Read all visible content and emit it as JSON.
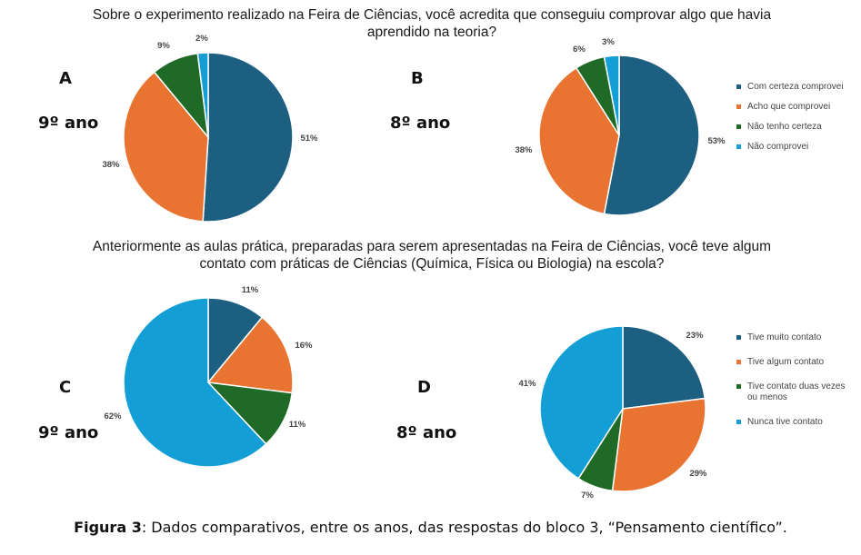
{
  "question1": "Sobre o experimento realizado na Feira de Ciências, você acredita que conseguiu comprovar algo que havia aprendido na teoria?",
  "question2": "Anteriormente as aulas prática, preparadas para serem apresentadas na Feira de Ciências, você teve algum contato com práticas de Ciências (Química, Física ou Biologia) na escola?",
  "panels": {
    "A": {
      "letter": "A",
      "grade": "9º ano"
    },
    "B": {
      "letter": "B",
      "grade": "8º ano"
    },
    "C": {
      "letter": "C",
      "grade": "9º ano"
    },
    "D": {
      "letter": "D",
      "grade": "8º ano"
    }
  },
  "caption": {
    "label": "Figura 3",
    "text": ": Dados comparativos, entre os anos, das respostas do  bloco 3, “Pensamento científico”."
  },
  "colors": {
    "dark_blue": "#1c5f80",
    "orange": "#e97331",
    "green": "#1e6a26",
    "light_blue": "#139fd5"
  },
  "chart_data": [
    {
      "id": "A",
      "type": "pie",
      "categories": [
        "Com certeza comprovei",
        "Acho que comprovei",
        "Não tenho certeza",
        "Não comprovei"
      ],
      "values": [
        51,
        38,
        9,
        2
      ],
      "labels": [
        "51%",
        "38%",
        "9%",
        "2%"
      ]
    },
    {
      "id": "B",
      "type": "pie",
      "categories": [
        "Com certeza comprovei",
        "Acho que comprovei",
        "Não tenho certeza",
        "Não comprovei"
      ],
      "values": [
        53,
        38,
        6,
        3
      ],
      "labels": [
        "53%",
        "38%",
        "6%",
        "3%"
      ],
      "legend": [
        "Com certeza comprovei",
        "Acho que comprovei",
        "Não tenho certeza",
        "Não comprovei"
      ],
      "legend_position": "right"
    },
    {
      "id": "C",
      "type": "pie",
      "categories": [
        "Tive muito contato",
        "Tive algum contato",
        "Tive contato duas vezes ou menos",
        "Nunca tive contato"
      ],
      "values": [
        11,
        16,
        11,
        62
      ],
      "labels": [
        "11%",
        "16%",
        "11%",
        "62%"
      ]
    },
    {
      "id": "D",
      "type": "pie",
      "categories": [
        "Tive muito contato",
        "Tive algum contato",
        "Tive contato duas vezes ou menos",
        "Nunca tive contato"
      ],
      "values": [
        23,
        29,
        7,
        41
      ],
      "labels": [
        "23%",
        "29%",
        "7%",
        "41%"
      ],
      "legend": [
        "Tive muito contato",
        "Tive algum contato",
        "Tive contato duas vezes ou menos",
        "Nunca tive contato"
      ],
      "legend_position": "right"
    }
  ]
}
